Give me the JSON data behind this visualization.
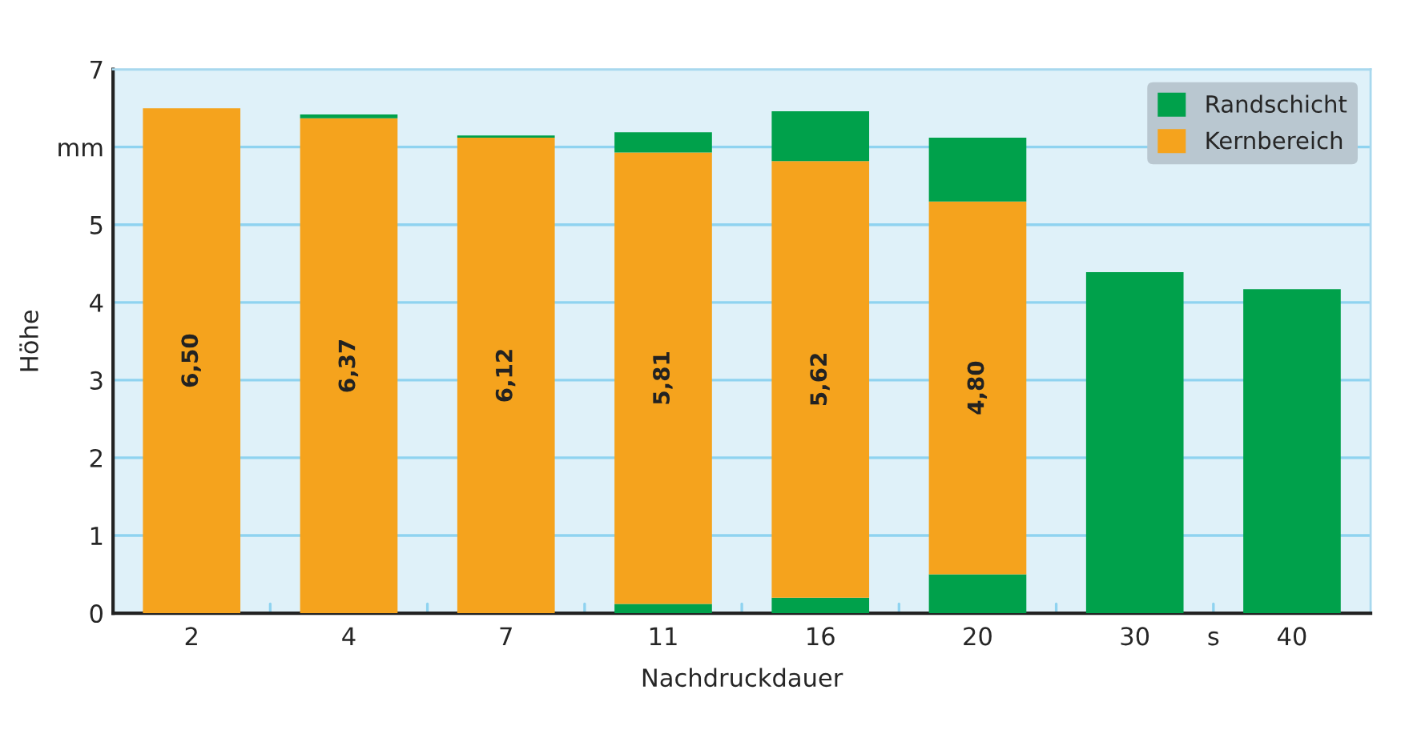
{
  "chart_data": {
    "type": "bar",
    "stacked": true,
    "categories": [
      "2",
      "4",
      "7",
      "11",
      "16",
      "20",
      "30",
      "40"
    ],
    "series": [
      {
        "name": "Randschicht",
        "color": "#00a14b",
        "values": [
          null,
          null,
          null,
          0.12,
          0.2,
          0.5,
          4.39,
          4.17
        ]
      },
      {
        "name": "Kernbereich",
        "color": "#f5a31d",
        "values": [
          6.5,
          6.37,
          6.12,
          5.81,
          5.62,
          4.8,
          null,
          null
        ],
        "value_labels": [
          "6,50",
          "6,37",
          "6,12",
          "5,81",
          "5,62",
          "4,80",
          null,
          null
        ]
      },
      {
        "color": "#00a14b",
        "values": [
          null,
          0.05,
          0.03,
          0.26,
          0.64,
          0.82,
          null,
          null
        ]
      }
    ],
    "xlabel": "Nachdruckdauer",
    "ylabel": "Höhe",
    "ylim": [
      0,
      7
    ],
    "yticks": [
      0,
      1,
      2,
      3,
      4,
      5,
      {
        "value": 6,
        "label": "mm"
      },
      7
    ],
    "grid": "y",
    "legend": "top right",
    "annotations": [
      "s"
    ]
  }
}
